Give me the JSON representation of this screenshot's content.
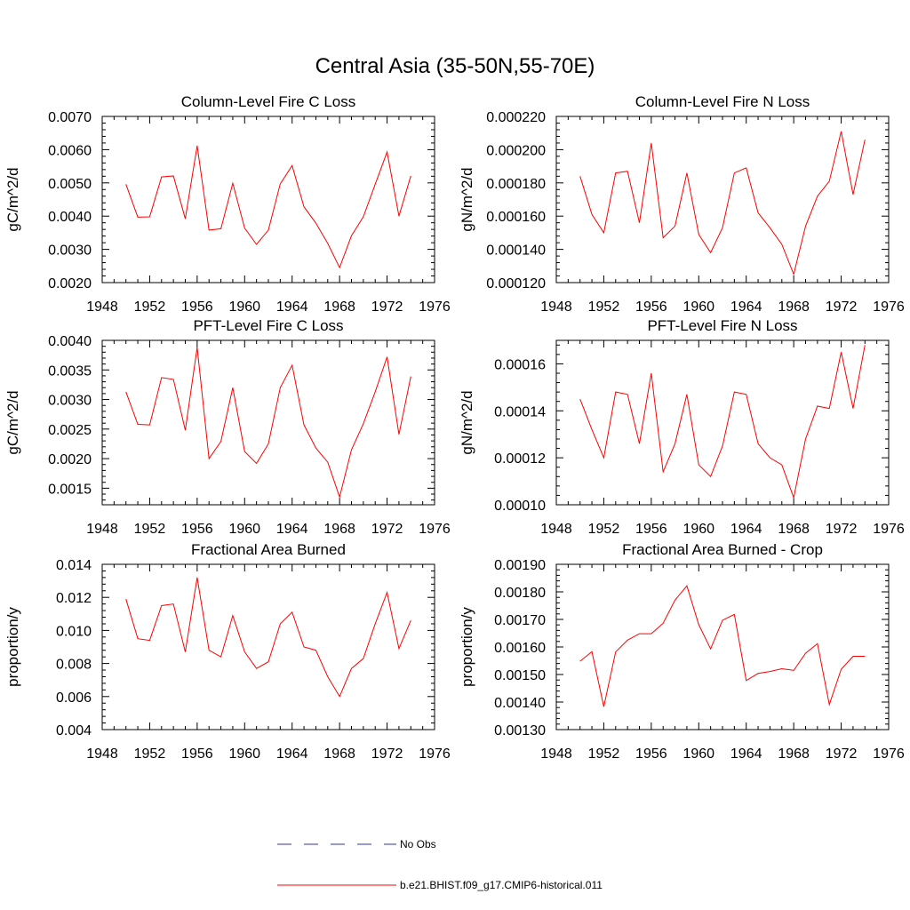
{
  "title": "Central Asia (35-50N,55-70E)",
  "legend": {
    "placement": "bottom-center",
    "entries": [
      {
        "label": "No Obs",
        "color": "#3333aa",
        "dash": true
      },
      {
        "label": "b.e21.BHIST.f09_g17.CMIP6-historical.011",
        "color": "#ff0000",
        "dash": false
      }
    ]
  },
  "colors": {
    "series": "#ff0000",
    "axis": "#000000"
  },
  "chart_data": [
    {
      "type": "line",
      "title": "Column-Level Fire C Loss",
      "ylabel": "gC/m^2/d",
      "xlim": [
        1948,
        1976
      ],
      "xticks": [
        1948,
        1952,
        1956,
        1960,
        1964,
        1968,
        1972,
        1976
      ],
      "ylim": [
        0.002,
        0.007
      ],
      "yticks": [
        0.002,
        0.003,
        0.004,
        0.005,
        0.006,
        0.007
      ],
      "ytick_labels": [
        "0.0020",
        "0.0030",
        "0.0040",
        "0.0050",
        "0.0060",
        "0.0070"
      ],
      "x": [
        1950,
        1951,
        1952,
        1953,
        1954,
        1955,
        1956,
        1957,
        1958,
        1959,
        1960,
        1961,
        1962,
        1963,
        1964,
        1965,
        1966,
        1967,
        1968,
        1969,
        1970,
        1971,
        1972,
        1973,
        1974
      ],
      "series": [
        {
          "name": "b.e21.BHIST.f09_g17.CMIP6-historical.011",
          "values": [
            0.00496,
            0.00397,
            0.00398,
            0.00518,
            0.00521,
            0.00392,
            0.00612,
            0.00358,
            0.00362,
            0.00499,
            0.00364,
            0.00315,
            0.00358,
            0.00497,
            0.00552,
            0.00428,
            0.00379,
            0.00318,
            0.00245,
            0.00341,
            0.00398,
            0.00496,
            0.00593,
            0.004,
            0.00521
          ]
        }
      ]
    },
    {
      "type": "line",
      "title": "Column-Level Fire N Loss",
      "ylabel": "gN/m^2/d",
      "xlim": [
        1948,
        1976
      ],
      "xticks": [
        1948,
        1952,
        1956,
        1960,
        1964,
        1968,
        1972,
        1976
      ],
      "ylim": [
        0.00012,
        0.00022
      ],
      "yticks": [
        0.00012,
        0.00014,
        0.00016,
        0.00018,
        0.0002,
        0.00022
      ],
      "ytick_labels": [
        "0.000120",
        "0.000140",
        "0.000160",
        "0.000180",
        "0.000200",
        "0.000220"
      ],
      "x": [
        1950,
        1951,
        1952,
        1953,
        1954,
        1955,
        1956,
        1957,
        1958,
        1959,
        1960,
        1961,
        1962,
        1963,
        1964,
        1965,
        1966,
        1967,
        1968,
        1969,
        1970,
        1971,
        1972,
        1973,
        1974
      ],
      "series": [
        {
          "name": "b.e21.BHIST.f09_g17.CMIP6-historical.011",
          "values": [
            0.000184,
            0.000161,
            0.00015,
            0.000186,
            0.000187,
            0.000156,
            0.000204,
            0.000147,
            0.000154,
            0.000186,
            0.000149,
            0.000138,
            0.000153,
            0.000186,
            0.000189,
            0.000162,
            0.000153,
            0.000143,
            0.000125,
            0.000154,
            0.000172,
            0.000181,
            0.000211,
            0.000173,
            0.000206
          ]
        }
      ]
    },
    {
      "type": "line",
      "title": "PFT-Level Fire C Loss",
      "ylabel": "gC/m^2/d",
      "xlim": [
        1948,
        1976
      ],
      "xticks": [
        1948,
        1952,
        1956,
        1960,
        1964,
        1968,
        1972,
        1976
      ],
      "ylim": [
        0.00122,
        0.004
      ],
      "yticks": [
        0.0015,
        0.002,
        0.0025,
        0.003,
        0.0035,
        0.004
      ],
      "ytick_labels": [
        "0.0015",
        "0.0020",
        "0.0025",
        "0.0030",
        "0.0035",
        "0.0040"
      ],
      "x": [
        1950,
        1951,
        1952,
        1953,
        1954,
        1955,
        1956,
        1957,
        1958,
        1959,
        1960,
        1961,
        1962,
        1963,
        1964,
        1965,
        1966,
        1967,
        1968,
        1969,
        1970,
        1971,
        1972,
        1973,
        1974
      ],
      "series": [
        {
          "name": "b.e21.BHIST.f09_g17.CMIP6-historical.011",
          "values": [
            0.00313,
            0.00258,
            0.00257,
            0.00337,
            0.00334,
            0.00248,
            0.00388,
            0.002,
            0.00229,
            0.0032,
            0.00212,
            0.00192,
            0.00225,
            0.0032,
            0.00358,
            0.00257,
            0.00218,
            0.00194,
            0.00135,
            0.00215,
            0.00259,
            0.00313,
            0.00372,
            0.00241,
            0.00339
          ]
        }
      ]
    },
    {
      "type": "line",
      "title": "PFT-Level Fire N Loss",
      "ylabel": "gN/m^2/d",
      "xlim": [
        1948,
        1976
      ],
      "xticks": [
        1948,
        1952,
        1956,
        1960,
        1964,
        1968,
        1972,
        1976
      ],
      "ylim": [
        0.0001,
        0.00017
      ],
      "yticks": [
        0.0001,
        0.00012,
        0.00014,
        0.00016
      ],
      "ytick_labels": [
        "0.00010",
        "0.00012",
        "0.00014",
        "0.00016"
      ],
      "x": [
        1950,
        1951,
        1952,
        1953,
        1954,
        1955,
        1956,
        1957,
        1958,
        1959,
        1960,
        1961,
        1962,
        1963,
        1964,
        1965,
        1966,
        1967,
        1968,
        1969,
        1970,
        1971,
        1972,
        1973,
        1974
      ],
      "series": [
        {
          "name": "b.e21.BHIST.f09_g17.CMIP6-historical.011",
          "values": [
            0.000145,
            0.000132,
            0.00012,
            0.000148,
            0.000147,
            0.000126,
            0.000156,
            0.000114,
            0.000126,
            0.000147,
            0.000117,
            0.000112,
            0.000125,
            0.000148,
            0.000147,
            0.000126,
            0.00012,
            0.000117,
            0.000103,
            0.000128,
            0.000142,
            0.000141,
            0.000165,
            0.000141,
            0.000168
          ]
        }
      ]
    },
    {
      "type": "line",
      "title": "Fractional Area Burned",
      "ylabel": "proportion/y",
      "xlim": [
        1948,
        1976
      ],
      "xticks": [
        1948,
        1952,
        1956,
        1960,
        1964,
        1968,
        1972,
        1976
      ],
      "ylim": [
        0.004,
        0.014
      ],
      "yticks": [
        0.004,
        0.006,
        0.008,
        0.01,
        0.012,
        0.014
      ],
      "ytick_labels": [
        "0.004",
        "0.006",
        "0.008",
        "0.010",
        "0.012",
        "0.014"
      ],
      "x": [
        1950,
        1951,
        1952,
        1953,
        1954,
        1955,
        1956,
        1957,
        1958,
        1959,
        1960,
        1961,
        1962,
        1963,
        1964,
        1965,
        1966,
        1967,
        1968,
        1969,
        1970,
        1971,
        1972,
        1973,
        1974
      ],
      "series": [
        {
          "name": "b.e21.BHIST.f09_g17.CMIP6-historical.011",
          "values": [
            0.0119,
            0.0095,
            0.0094,
            0.0115,
            0.0116,
            0.0087,
            0.0132,
            0.0088,
            0.0084,
            0.0109,
            0.0087,
            0.0077,
            0.0081,
            0.0104,
            0.0111,
            0.009,
            0.0088,
            0.0072,
            0.006,
            0.0077,
            0.0083,
            0.0104,
            0.0123,
            0.0089,
            0.0106
          ]
        }
      ]
    },
    {
      "type": "line",
      "title": "Fractional Area Burned - Crop",
      "ylabel": "proportion/y",
      "xlim": [
        1948,
        1976
      ],
      "xticks": [
        1948,
        1952,
        1956,
        1960,
        1964,
        1968,
        1972,
        1976
      ],
      "ylim": [
        0.0013,
        0.0019
      ],
      "yticks": [
        0.0013,
        0.0014,
        0.0015,
        0.0016,
        0.0017,
        0.0018,
        0.0019
      ],
      "ytick_labels": [
        "0.00130",
        "0.00140",
        "0.00150",
        "0.00160",
        "0.00170",
        "0.00180",
        "0.00190"
      ],
      "x": [
        1950,
        1951,
        1952,
        1953,
        1954,
        1955,
        1956,
        1957,
        1958,
        1959,
        1960,
        1961,
        1962,
        1963,
        1964,
        1965,
        1966,
        1967,
        1968,
        1969,
        1970,
        1971,
        1972,
        1973,
        1974
      ],
      "series": [
        {
          "name": "b.e21.BHIST.f09_g17.CMIP6-historical.011",
          "values": [
            0.001548,
            0.001583,
            0.001383,
            0.001582,
            0.001625,
            0.001648,
            0.001648,
            0.001686,
            0.00177,
            0.001822,
            0.001681,
            0.001593,
            0.001697,
            0.001718,
            0.001478,
            0.001504,
            0.001511,
            0.001521,
            0.001515,
            0.001577,
            0.001612,
            0.001391,
            0.001519,
            0.001566,
            0.001566
          ]
        }
      ]
    }
  ]
}
